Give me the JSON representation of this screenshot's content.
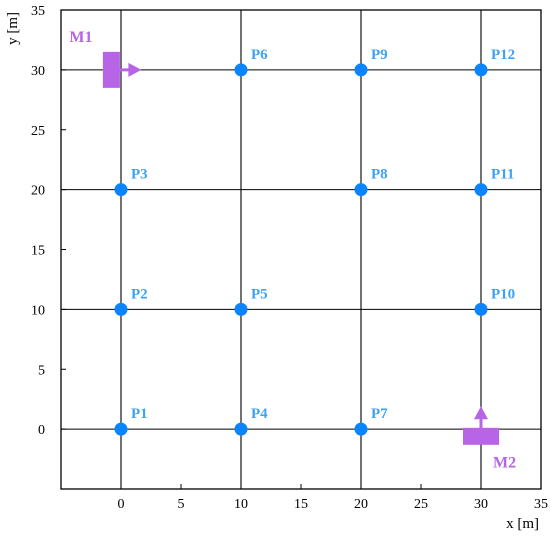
{
  "chart_data": {
    "type": "scatter",
    "xlabel": "x [m]",
    "ylabel": "y [m]",
    "xlim": [
      -5,
      35
    ],
    "ylim": [
      -5,
      35
    ],
    "x_ticks": [
      0,
      5,
      10,
      15,
      20,
      25,
      30,
      35
    ],
    "y_ticks": [
      0,
      5,
      10,
      15,
      20,
      25,
      30,
      35
    ],
    "grid": true,
    "grid_spacing": 10,
    "point_color": "#0a84ff",
    "label_color": "#3fa2f0",
    "marker_color": "#b764e6",
    "points": [
      {
        "label": "P1",
        "x": 0,
        "y": 0
      },
      {
        "label": "P2",
        "x": 0,
        "y": 10
      },
      {
        "label": "P3",
        "x": 0,
        "y": 20
      },
      {
        "label": "P4",
        "x": 10,
        "y": 0
      },
      {
        "label": "P5",
        "x": 10,
        "y": 10
      },
      {
        "label": "P6",
        "x": 10,
        "y": 30
      },
      {
        "label": "P7",
        "x": 20,
        "y": 0
      },
      {
        "label": "P8",
        "x": 20,
        "y": 20
      },
      {
        "label": "P9",
        "x": 20,
        "y": 30
      },
      {
        "label": "P10",
        "x": 30,
        "y": 10
      },
      {
        "label": "P11",
        "x": 30,
        "y": 20
      },
      {
        "label": "P12",
        "x": 30,
        "y": 30
      }
    ],
    "markers": [
      {
        "label": "M1",
        "x": -0.8,
        "y": 30,
        "direction": "right"
      },
      {
        "label": "M2",
        "x": 30,
        "y": -0.6,
        "direction": "up"
      }
    ]
  }
}
